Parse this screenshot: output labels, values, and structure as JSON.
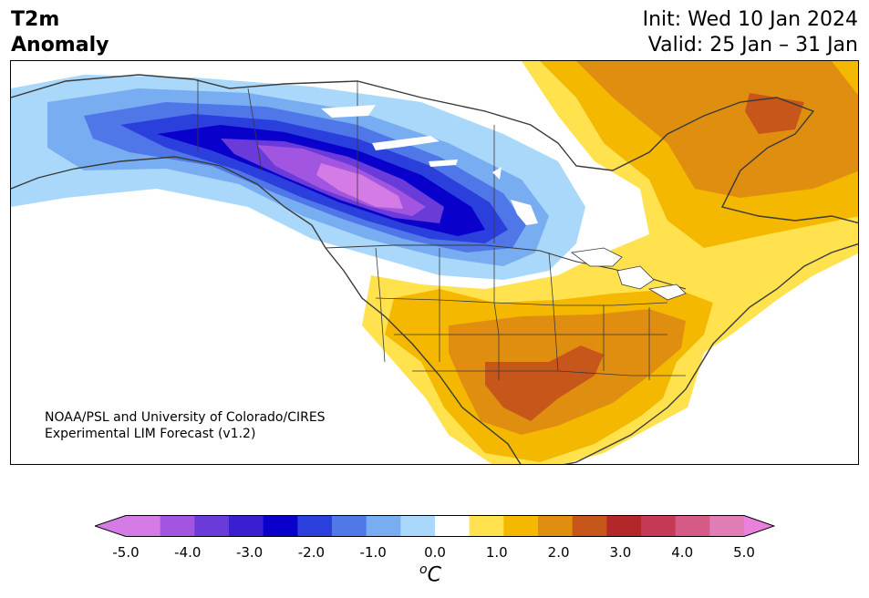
{
  "header": {
    "variable": "T2m",
    "field": "Anomaly",
    "init": "Init: Wed 10 Jan 2024",
    "valid": "Valid: 25 Jan – 31 Jan"
  },
  "credit": {
    "line1": "NOAA/PSL and University of Colorado/CIRES",
    "line2": "Experimental LIM Forecast (v1.2)"
  },
  "colorbar": {
    "unit_superscript": "o",
    "unit": "C",
    "ticks": [
      "-5.0",
      "-4.0",
      "-3.0",
      "-2.0",
      "-1.0",
      "0.0",
      "1.0",
      "2.0",
      "3.0",
      "4.0",
      "5.0"
    ],
    "colors": [
      "#d57be6",
      "#a155e0",
      "#6a3bd8",
      "#3a1fd0",
      "#0a00cc",
      "#2a3fdc",
      "#4f77e8",
      "#78adf2",
      "#a9d8fb",
      "#ffffff",
      "#ffe24d",
      "#f4b800",
      "#e08e0f",
      "#c7561a",
      "#b3272b",
      "#c43a55",
      "#d65a86",
      "#e07db6"
    ],
    "under_color": "#d57be6",
    "over_color": "#ea80dc"
  },
  "map": {
    "colors": {
      "land_outline": "#3a3a3a",
      "cold_1": "#a9d8fb",
      "cold_2": "#78adf2",
      "cold_3": "#4f77e8",
      "cold_4": "#2a3fdc",
      "cold_5": "#0a00cc",
      "cold_6": "#3a1fd0",
      "cold_7": "#6a3bd8",
      "cold_8": "#a155e0",
      "cold_9": "#d57be6",
      "warm_1": "#ffe24d",
      "warm_2": "#f4b800",
      "warm_3": "#e08e0f",
      "warm_4": "#c7561a"
    }
  }
}
